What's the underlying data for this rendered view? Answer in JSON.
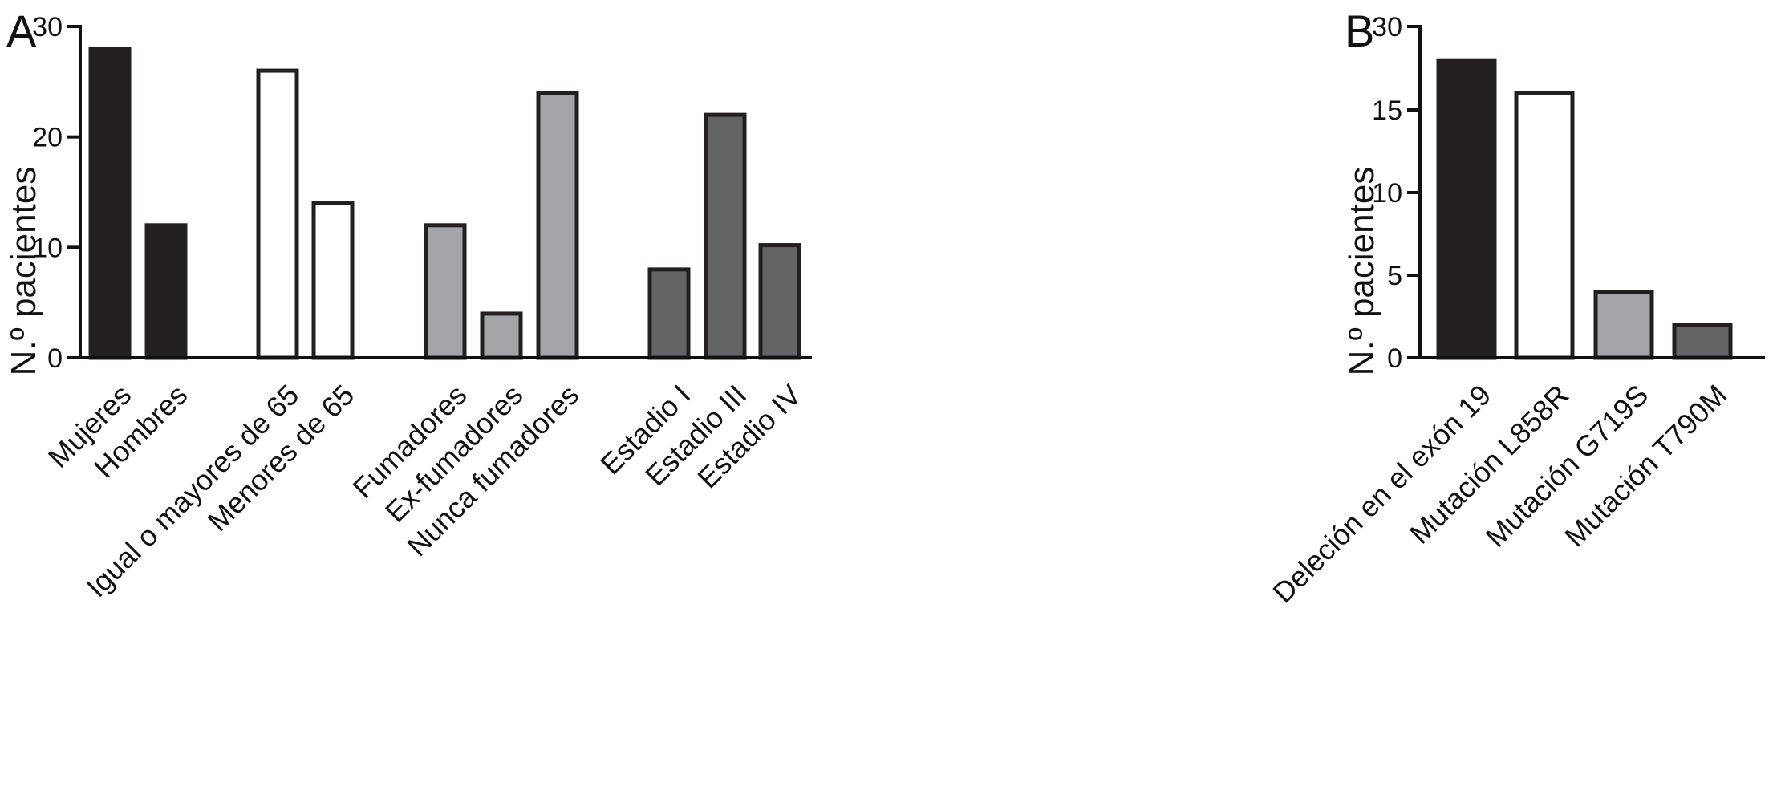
{
  "chart_data": [
    {
      "panel": "A",
      "type": "bar",
      "ylabel": "N.º pacientes",
      "ylim": [
        0,
        30
      ],
      "yticks": [
        0,
        10,
        20,
        30
      ],
      "categories": [
        "Mujeres",
        "Hombres",
        "Igual o mayores de 65",
        "Menores de 65",
        "Fumadores",
        "Ex-fumadores",
        "Nunca fumadores",
        "Estadio I",
        "Estadio III",
        "Estadio IV"
      ],
      "values": [
        28,
        12,
        26,
        14,
        12,
        4,
        24,
        8,
        22,
        10.2
      ],
      "groups": [
        {
          "categories": [
            "Mujeres",
            "Hombres"
          ],
          "color": "#231f20"
        },
        {
          "categories": [
            "Igual o mayores de 65",
            "Menores de 65"
          ],
          "color": "#ffffff"
        },
        {
          "categories": [
            "Fumadores",
            "Ex-fumadores",
            "Nunca fumadores"
          ],
          "color": "#a3a5a8"
        },
        {
          "categories": [
            "Estadio I",
            "Estadio III",
            "Estadio IV"
          ],
          "color": "#636466"
        }
      ],
      "grid": false
    },
    {
      "panel": "B",
      "type": "bar",
      "ylabel": "N.º pacientes",
      "ylim": [
        0,
        30
      ],
      "yticks": [
        0,
        5,
        10,
        15,
        30
      ],
      "categories": [
        "Deleción en el exón 19",
        "Mutación L858R",
        "Mutación G719S",
        "Mutación T790M"
      ],
      "values": [
        18,
        16,
        4,
        2
      ],
      "colors": [
        "#231f20",
        "#ffffff",
        "#a3a5a8",
        "#636466"
      ],
      "grid": false
    }
  ]
}
